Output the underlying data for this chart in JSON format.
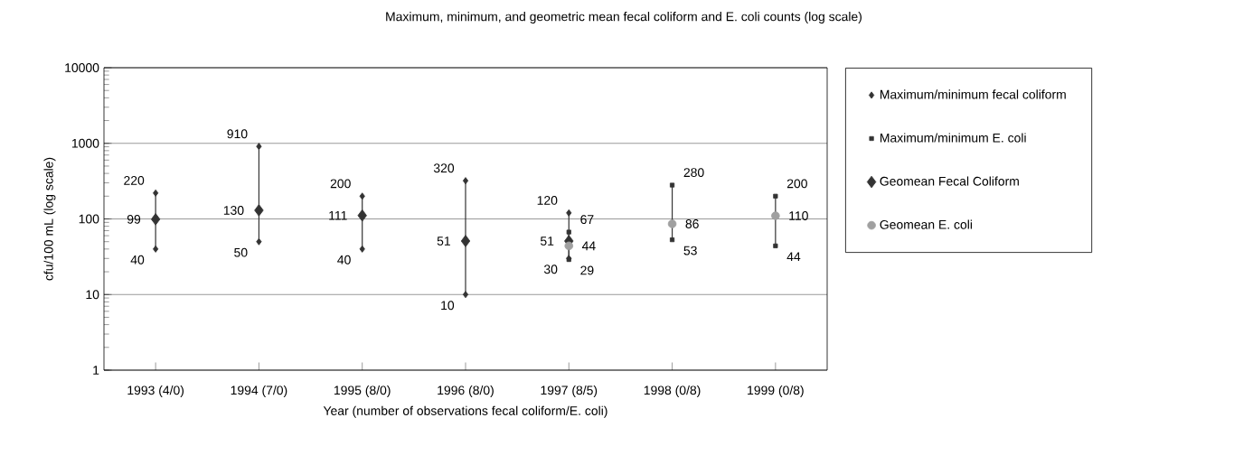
{
  "chart_data": {
    "type": "scatter",
    "title": "Maximum, minimum, and geometric mean fecal coliform and E. coli counts (log scale)",
    "xlabel": "Year (number of observations fecal coliform/E. coli)",
    "ylabel": "cfu/100 mL (log scale)",
    "categories": [
      "1993 (4/0)",
      "1994 (7/0)",
      "1995 (8/0)",
      "1996 (8/0)",
      "1997 (8/5)",
      "1998 (0/8)",
      "1999 (0/8)"
    ],
    "series": [
      {
        "name": "Maximum/minimum fecal coliform",
        "color": "#333333",
        "marker": "diamond",
        "x": [
          "1993 (4/0)",
          "1993 (4/0)",
          "1994 (7/0)",
          "1994 (7/0)",
          "1995 (8/0)",
          "1995 (8/0)",
          "1996 (8/0)",
          "1996 (8/0)",
          "1997 (8/5)",
          "1997 (8/5)"
        ],
        "values": [
          220,
          40,
          910,
          50,
          200,
          40,
          320,
          10,
          120,
          30
        ]
      },
      {
        "name": "Maximum/minimum E. coli",
        "color": "#333333",
        "marker": "square",
        "x": [
          "1997 (8/5)",
          "1997 (8/5)",
          "1998 (0/8)",
          "1998 (0/8)",
          "1999 (0/8)",
          "1999 (0/8)"
        ],
        "values": [
          67,
          29,
          280,
          53,
          200,
          44
        ]
      },
      {
        "name": "Geomean Fecal Coliform",
        "color": "#333333",
        "marker": "diamond",
        "values": [
          99,
          130,
          111,
          51,
          51,
          null,
          null
        ]
      },
      {
        "name": "Geomean E. coli",
        "color": "#a0a0a0",
        "marker": "circle",
        "values": [
          null,
          null,
          null,
          null,
          44,
          86,
          110
        ]
      }
    ],
    "log": "y",
    "ylim": [
      1,
      10000
    ],
    "yticks": [
      1,
      10,
      100,
      1000,
      10000
    ],
    "grid": "y",
    "legend": "right",
    "data_labels": true
  }
}
